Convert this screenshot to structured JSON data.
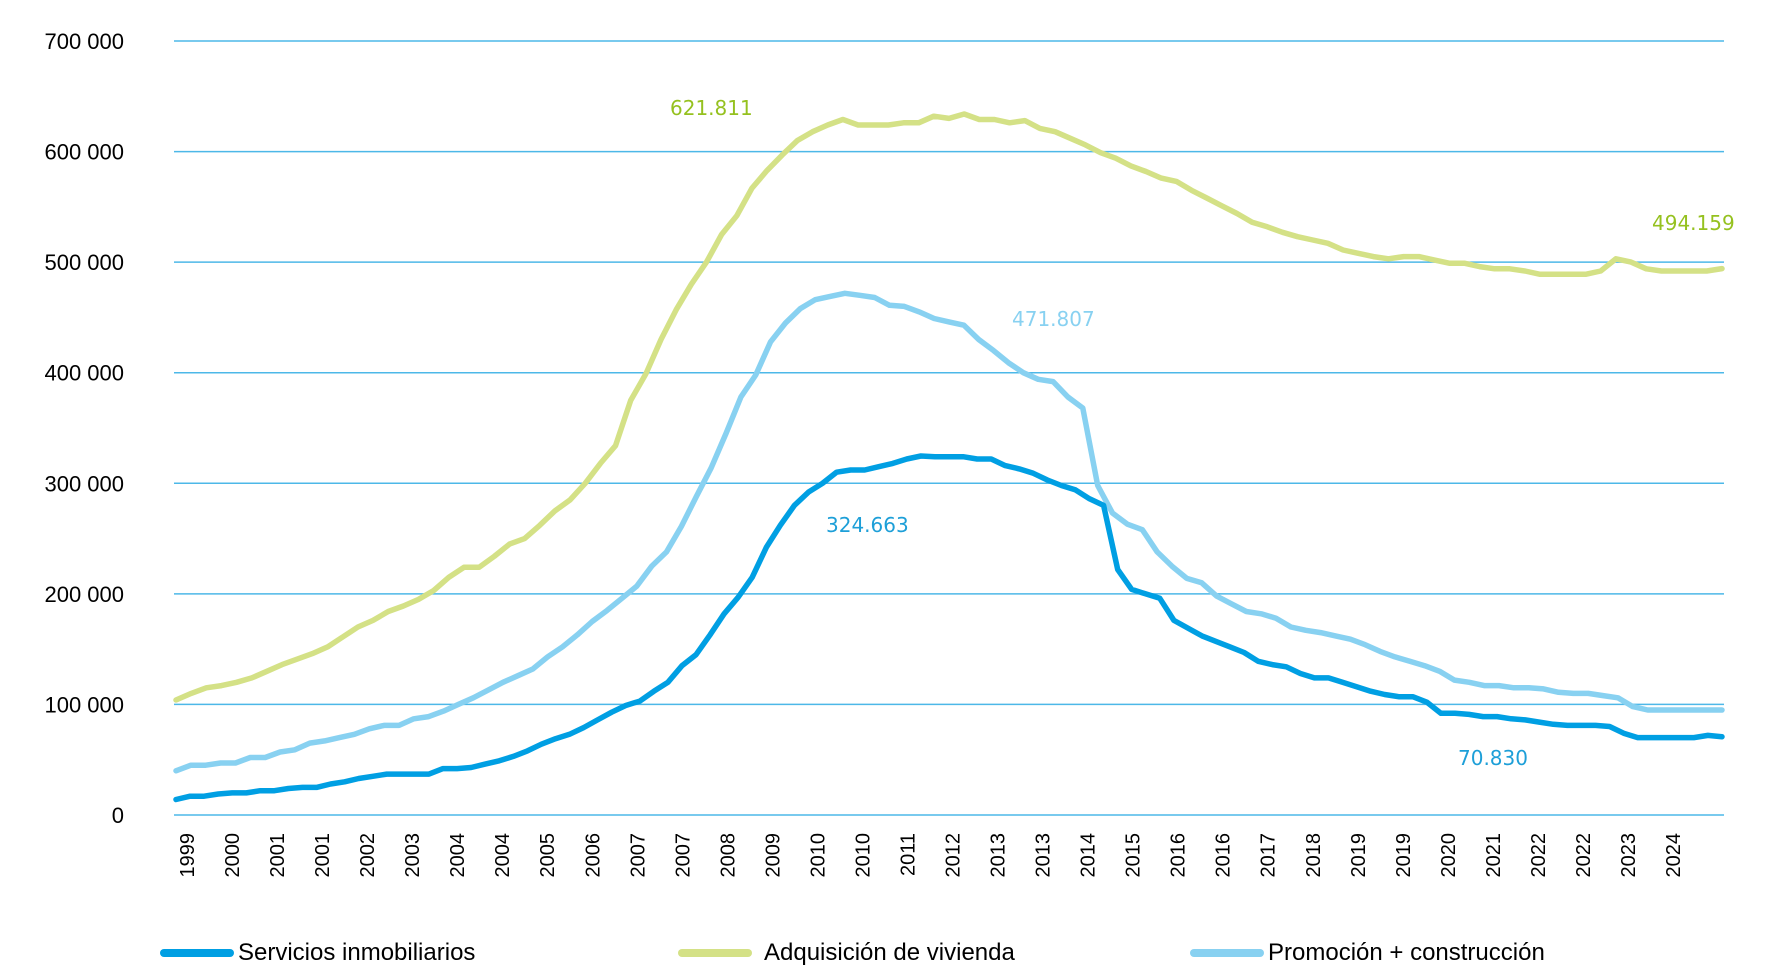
{
  "chart_data": {
    "type": "line",
    "title": "",
    "xlabel": "",
    "ylabel": "",
    "ylim": [
      0,
      700000
    ],
    "yticks": [
      0,
      100000,
      200000,
      300000,
      400000,
      500000,
      600000,
      700000
    ],
    "ytick_labels": [
      "0",
      "100 000",
      "200 000",
      "300 000",
      "400 000",
      "500 000",
      "600 000",
      "700 000"
    ],
    "grid": true,
    "legend_position": "bottom",
    "xtick_labels": [
      "1999",
      "2000",
      "2001",
      "2001",
      "2002",
      "2003",
      "2004",
      "2004",
      "2005",
      "2006",
      "2007",
      "2007",
      "2008",
      "2009",
      "2010",
      "2010",
      "2011",
      "2012",
      "2013",
      "2013",
      "2014",
      "2015",
      "2016",
      "2016",
      "2017",
      "2018",
      "2019",
      "2019",
      "2020",
      "2021",
      "2022",
      "2022",
      "2023",
      "2024"
    ],
    "series": [
      {
        "name": "Servicios inmobiliarios",
        "color": "#009fe3",
        "values": [
          14000,
          17000,
          17000,
          19000,
          20000,
          20000,
          22000,
          22000,
          24000,
          25000,
          25000,
          28000,
          30000,
          33000,
          35000,
          37000,
          37000,
          37000,
          37000,
          42000,
          42000,
          43000,
          46000,
          49000,
          53000,
          58000,
          64000,
          69000,
          73000,
          79000,
          86000,
          93000,
          99000,
          103000,
          112000,
          120000,
          135000,
          145000,
          163000,
          182000,
          197000,
          215000,
          242000,
          262000,
          280000,
          292000,
          300000,
          310000,
          312000,
          312000,
          315000,
          318000,
          322000,
          324663,
          324000,
          324000,
          324000,
          322000,
          322000,
          316000,
          313000,
          309000,
          303000,
          298000,
          294000,
          286000,
          280000,
          222000,
          204000,
          200000,
          196000,
          176000,
          169000,
          162000,
          157000,
          152000,
          147000,
          139000,
          136000,
          134000,
          128000,
          124000,
          124000,
          120000,
          116000,
          112000,
          109000,
          107000,
          107000,
          102000,
          92000,
          92000,
          91000,
          89000,
          89000,
          87000,
          86000,
          84000,
          82000,
          81000,
          81000,
          81000,
          80000,
          74000,
          70000,
          70000,
          70000,
          70000,
          70000,
          72000,
          70830
        ],
        "annotation": "324.663",
        "annotation_end": "70.830"
      },
      {
        "name": "Adquisición de vivienda",
        "color": "#d4e186",
        "values": [
          104000,
          110000,
          115000,
          117000,
          120000,
          124000,
          130000,
          136000,
          141000,
          146000,
          152000,
          161000,
          170000,
          176000,
          184000,
          189000,
          195000,
          203000,
          215000,
          224000,
          224000,
          234000,
          245000,
          250000,
          262000,
          275000,
          285000,
          300000,
          318000,
          334000,
          375000,
          399000,
          430000,
          457000,
          480000,
          500000,
          525000,
          542000,
          567000,
          583000,
          597000,
          610000,
          618000,
          624000,
          629000,
          624000,
          624000,
          624000,
          626000,
          626000,
          632000,
          630000,
          634000,
          629000,
          629000,
          626000,
          628000,
          621000,
          618000,
          612000,
          606000,
          599000,
          594000,
          587000,
          582000,
          576000,
          573000,
          565000,
          558000,
          551000,
          544000,
          536000,
          532000,
          527000,
          523000,
          520000,
          517000,
          511000,
          508000,
          505000,
          503000,
          505000,
          505000,
          502000,
          499000,
          499000,
          496000,
          494000,
          494000,
          492000,
          489000,
          489000,
          489000,
          489000,
          492000,
          503000,
          500000,
          494000,
          492000,
          492000,
          492000,
          492000,
          494159
        ],
        "annotation": "621.811",
        "annotation_end": "494.159"
      },
      {
        "name": "Promoción + construcción",
        "color": "#88d1f1",
        "values": [
          40000,
          45000,
          45000,
          47000,
          47000,
          52000,
          52000,
          57000,
          59000,
          65000,
          67000,
          70000,
          73000,
          78000,
          81000,
          81000,
          87000,
          89000,
          94000,
          100000,
          106000,
          113000,
          120000,
          126000,
          132000,
          143000,
          152000,
          163000,
          175000,
          185000,
          196000,
          207000,
          225000,
          238000,
          261000,
          288000,
          314000,
          345000,
          378000,
          398000,
          428000,
          445000,
          458000,
          466000,
          469000,
          471807,
          470000,
          468000,
          461000,
          460000,
          455000,
          449000,
          446000,
          443000,
          430000,
          420000,
          409000,
          400000,
          394000,
          392000,
          378000,
          368000,
          298000,
          273000,
          263000,
          258000,
          238000,
          225000,
          214000,
          210000,
          198000,
          191000,
          184000,
          182000,
          178000,
          170000,
          167000,
          165000,
          162000,
          159000,
          154000,
          148000,
          143000,
          139000,
          135000,
          130000,
          122000,
          120000,
          117000,
          117000,
          115000,
          115000,
          114000,
          111000,
          110000,
          110000,
          108000,
          106000,
          98000,
          95000,
          95000,
          95000,
          95000,
          95000,
          95000
        ],
        "annotation": "471.807"
      }
    ],
    "annotations": [
      {
        "text": "621.811",
        "series": "Adquisición de vivienda",
        "color": "#95c11f"
      },
      {
        "text": "494.159",
        "series": "Adquisición de vivienda",
        "color": "#95c11f"
      },
      {
        "text": "471.807",
        "series": "Promoción + construcción",
        "color": "#88d1f1"
      },
      {
        "text": "324.663",
        "series": "Servicios inmobiliarios",
        "color": "#1d9fd8"
      },
      {
        "text": "70.830",
        "series": "Servicios inmobiliarios",
        "color": "#1d9fd8"
      }
    ],
    "gridline_color": "#4db8e8"
  }
}
